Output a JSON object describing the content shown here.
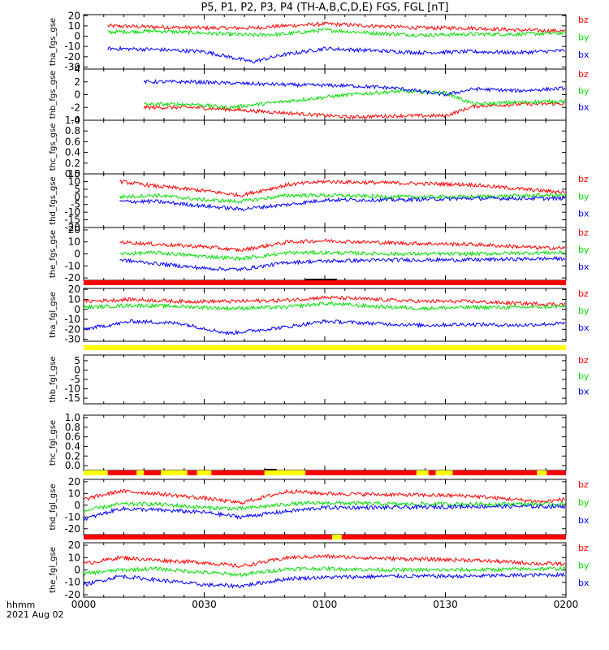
{
  "title": "P5, P1, P2, P3, P4 (TH-A,B,C,D,E) FGS, FGL [nT]",
  "colors": {
    "bx": "#0000ff",
    "by": "#00dd00",
    "bz": "#ff0000",
    "bar_red": "#ff0000",
    "bar_yellow": "#ffff00",
    "bar_black": "#000000"
  },
  "footer": {
    "hhmm_label": "hhmm",
    "date_label": "2021 Aug 02"
  },
  "x_axis": {
    "range_hours": [
      0,
      2
    ],
    "tick_labels": [
      "0000",
      "0030",
      "0100",
      "0130",
      "0200"
    ]
  },
  "chart_data": [
    {
      "id": "tha_fgs_gse",
      "type": "line",
      "ylabel": "tha_fgs_gse",
      "ylim": [
        -32,
        21
      ],
      "yticks": [
        20,
        10,
        0,
        -10,
        -20,
        -30
      ],
      "legend": [
        "bz",
        "by",
        "bx"
      ],
      "has_data": true,
      "data_start_hour": 0.1,
      "series": [
        {
          "name": "bz",
          "x": [
            0.1,
            0.3,
            0.5,
            0.7,
            0.83,
            1.0,
            1.2,
            1.4,
            1.6,
            1.8,
            2.0
          ],
          "values": [
            10,
            9,
            8,
            8,
            10,
            12,
            10,
            8,
            8,
            6,
            5
          ]
        },
        {
          "name": "by",
          "x": [
            0.1,
            0.3,
            0.5,
            0.7,
            0.83,
            1.0,
            1.2,
            1.4,
            1.6,
            1.8,
            2.0
          ],
          "values": [
            4,
            5,
            3,
            1,
            2,
            6,
            3,
            1,
            2,
            2,
            3
          ]
        },
        {
          "name": "bx",
          "x": [
            0.1,
            0.3,
            0.5,
            0.7,
            0.83,
            1.0,
            1.2,
            1.4,
            1.6,
            1.8,
            2.0
          ],
          "values": [
            -12,
            -13,
            -15,
            -25,
            -18,
            -12,
            -14,
            -16,
            -15,
            -16,
            -14
          ]
        }
      ]
    },
    {
      "id": "thb_fgs_gse",
      "type": "line",
      "ylabel": "thb_fgs_gse",
      "ylim": [
        -4,
        4
      ],
      "yticks": [
        4,
        2,
        0,
        -2,
        -4
      ],
      "legend": [
        "bz",
        "by",
        "bx"
      ],
      "has_data": true,
      "data_start_hour": 0.25,
      "series": [
        {
          "name": "bz",
          "x": [
            0.25,
            0.45,
            0.6,
            0.9,
            1.1,
            1.3,
            1.5,
            1.62,
            1.8,
            2.0
          ],
          "values": [
            -2,
            -2,
            -2.3,
            -3,
            -3.5,
            -3.3,
            -3.3,
            -1.8,
            -1.5,
            -1.4
          ]
        },
        {
          "name": "by",
          "x": [
            0.25,
            0.45,
            0.6,
            0.9,
            1.1,
            1.3,
            1.5,
            1.62,
            1.8,
            2.0
          ],
          "values": [
            -1.5,
            -1.5,
            -2.0,
            -0.8,
            0.0,
            0.5,
            0.3,
            -1.5,
            -1.2,
            -1.0
          ]
        },
        {
          "name": "bx",
          "x": [
            0.25,
            0.45,
            0.6,
            0.9,
            1.1,
            1.3,
            1.5,
            1.62,
            1.8,
            2.0
          ],
          "values": [
            2,
            2,
            1.8,
            1.5,
            1.4,
            1.0,
            0.0,
            0.9,
            0.6,
            1.0
          ]
        }
      ]
    },
    {
      "id": "thc_fgs_gse",
      "type": "line",
      "ylabel": "thc_fgs_gse",
      "ylim": [
        0,
        1
      ],
      "yticks": [
        1.0,
        0.8,
        0.6,
        0.4,
        0.2,
        0.0
      ],
      "yticks_dense": true,
      "legend": [],
      "has_data": false,
      "series": []
    },
    {
      "id": "thd_fgs_gse",
      "type": "line",
      "ylabel": "thd_fgs_gse",
      "ylim": [
        -20,
        15
      ],
      "yticks": [
        15,
        10,
        5,
        0,
        -5,
        -10,
        -15,
        -20
      ],
      "legend": [
        "bz",
        "by",
        "bx"
      ],
      "has_data": true,
      "data_start_hour": 0.15,
      "series": [
        {
          "name": "bz",
          "x": [
            0.15,
            0.3,
            0.5,
            0.65,
            0.85,
            1.0,
            1.3,
            1.6,
            1.9,
            2.0
          ],
          "values": [
            10,
            7,
            4,
            1,
            8,
            10,
            9,
            8,
            4,
            3
          ]
        },
        {
          "name": "by",
          "x": [
            0.15,
            0.3,
            0.5,
            0.65,
            0.85,
            1.0,
            1.3,
            1.6,
            1.9,
            2.0
          ],
          "values": [
            0,
            1,
            -2,
            -3,
            1,
            1,
            0,
            0,
            1,
            1
          ]
        },
        {
          "name": "bx",
          "x": [
            0.15,
            0.3,
            0.5,
            0.65,
            0.85,
            1.0,
            1.3,
            1.6,
            1.9,
            2.0
          ],
          "values": [
            -3,
            -3,
            -6,
            -8,
            -5,
            -2,
            -2,
            -1,
            -1,
            -1
          ]
        }
      ]
    },
    {
      "id": "the_fgs_gse",
      "type": "line",
      "ylabel": "the_fgs_gse",
      "ylim": [
        -22,
        22
      ],
      "yticks": [
        20,
        10,
        0,
        -10,
        -20
      ],
      "legend": [
        "bz",
        "by",
        "bx"
      ],
      "has_data": true,
      "data_start_hour": 0.15,
      "series": [
        {
          "name": "bz",
          "x": [
            0.15,
            0.3,
            0.5,
            0.65,
            0.85,
            1.0,
            1.3,
            1.6,
            1.9,
            2.0
          ],
          "values": [
            10,
            8,
            6,
            3,
            10,
            11,
            9,
            8,
            5,
            5
          ]
        },
        {
          "name": "by",
          "x": [
            0.15,
            0.3,
            0.5,
            0.65,
            0.85,
            1.0,
            1.3,
            1.6,
            1.9,
            2.0
          ],
          "values": [
            0,
            1,
            -2,
            -4,
            1,
            1,
            0,
            0,
            1,
            1
          ]
        },
        {
          "name": "bx",
          "x": [
            0.15,
            0.3,
            0.5,
            0.65,
            0.85,
            1.0,
            1.3,
            1.6,
            1.9,
            2.0
          ],
          "values": [
            -5,
            -8,
            -12,
            -13,
            -7,
            -6,
            -5,
            -5,
            -4,
            -4
          ]
        }
      ]
    },
    {
      "id": "tha_fgl_gse",
      "type": "line",
      "ylabel": "tha_fgl_gse",
      "ylim": [
        -32,
        21
      ],
      "yticks": [
        20,
        10,
        0,
        -10,
        -20,
        -30
      ],
      "legend": [
        "bz",
        "by",
        "bx"
      ],
      "has_data": true,
      "data_start_hour": 0.0,
      "series": [
        {
          "name": "bz",
          "x": [
            0.0,
            0.2,
            0.4,
            0.6,
            0.83,
            1.0,
            1.2,
            1.4,
            1.6,
            1.8,
            2.0
          ],
          "values": [
            8,
            10,
            8,
            8,
            9,
            12,
            10,
            8,
            8,
            6,
            5
          ]
        },
        {
          "name": "by",
          "x": [
            0.0,
            0.2,
            0.4,
            0.6,
            0.83,
            1.0,
            1.2,
            1.4,
            1.6,
            1.8,
            2.0
          ],
          "values": [
            2,
            4,
            3,
            1,
            2,
            6,
            3,
            1,
            2,
            2,
            3
          ]
        },
        {
          "name": "bx",
          "x": [
            0.0,
            0.2,
            0.4,
            0.6,
            0.83,
            1.0,
            1.2,
            1.4,
            1.6,
            1.8,
            2.0
          ],
          "values": [
            -20,
            -12,
            -14,
            -24,
            -18,
            -12,
            -14,
            -16,
            -15,
            -16,
            -14
          ]
        }
      ]
    },
    {
      "id": "thb_fgl_gse",
      "type": "line",
      "ylabel": "thb_fgl_gse",
      "ylim": [
        -18,
        8
      ],
      "yticks": [
        5,
        0,
        -5,
        -10,
        -15
      ],
      "legend": [
        "bz",
        "by",
        "bx"
      ],
      "has_data": false,
      "series": []
    },
    {
      "id": "thc_fgl_gse",
      "type": "line",
      "ylabel": "thc_fgl_gse",
      "ylim": [
        -0.1,
        1.05
      ],
      "yticks": [
        1.0,
        0.8,
        0.6,
        0.4,
        0.2,
        0.0
      ],
      "yticks_dense": true,
      "legend": [],
      "has_data": false,
      "series": []
    },
    {
      "id": "thd_fgl_gse",
      "type": "line",
      "ylabel": "thd_fgl_gse",
      "ylim": [
        -25,
        22
      ],
      "yticks": [
        20,
        10,
        0,
        -10,
        -20
      ],
      "legend": [
        "bz",
        "by",
        "bx"
      ],
      "has_data": true,
      "data_start_hour": 0.0,
      "series": [
        {
          "name": "bz",
          "x": [
            0.0,
            0.15,
            0.3,
            0.5,
            0.65,
            0.85,
            1.0,
            1.3,
            1.6,
            1.9,
            2.0
          ],
          "values": [
            5,
            12,
            10,
            6,
            2,
            12,
            10,
            9,
            8,
            3,
            5
          ]
        },
        {
          "name": "by",
          "x": [
            0.0,
            0.15,
            0.3,
            0.5,
            0.65,
            0.85,
            1.0,
            1.3,
            1.6,
            1.9,
            2.0
          ],
          "values": [
            -5,
            1,
            1,
            -2,
            -3,
            1,
            2,
            1,
            1,
            1,
            1
          ]
        },
        {
          "name": "bx",
          "x": [
            0.0,
            0.15,
            0.3,
            0.5,
            0.65,
            0.85,
            1.0,
            1.3,
            1.6,
            1.9,
            2.0
          ],
          "values": [
            -12,
            -3,
            -4,
            -6,
            -10,
            -5,
            -2,
            -2,
            -1,
            -1,
            -1
          ]
        }
      ]
    },
    {
      "id": "the_fgl_gse",
      "type": "line",
      "ylabel": "the_fgl_gse",
      "ylim": [
        -22,
        22
      ],
      "yticks": [
        20,
        10,
        0,
        -10,
        -20
      ],
      "legend": [
        "bz",
        "by",
        "bx"
      ],
      "has_data": true,
      "data_start_hour": 0.0,
      "series": [
        {
          "name": "bz",
          "x": [
            0.0,
            0.15,
            0.3,
            0.5,
            0.65,
            0.85,
            1.0,
            1.3,
            1.6,
            1.9,
            2.0
          ],
          "values": [
            5,
            10,
            8,
            6,
            3,
            10,
            11,
            9,
            8,
            5,
            5
          ]
        },
        {
          "name": "by",
          "x": [
            0.0,
            0.15,
            0.3,
            0.5,
            0.65,
            0.85,
            1.0,
            1.3,
            1.6,
            1.9,
            2.0
          ],
          "values": [
            -3,
            0,
            1,
            -2,
            -4,
            1,
            1,
            0,
            0,
            1,
            1
          ]
        },
        {
          "name": "bx",
          "x": [
            0.0,
            0.15,
            0.3,
            0.5,
            0.65,
            0.85,
            1.0,
            1.3,
            1.6,
            1.9,
            2.0
          ],
          "values": [
            -12,
            -5,
            -8,
            -12,
            -13,
            -7,
            -6,
            -5,
            -5,
            -4,
            -4
          ]
        }
      ]
    }
  ],
  "mode_bars": [
    {
      "after_panel": "the_fgs_gse",
      "segments": [
        {
          "from": 0,
          "to": 2,
          "color": "red"
        }
      ],
      "black_marks": [
        [
          0.92,
          1.05
        ]
      ]
    },
    {
      "after_panel": "tha_fgl_gse",
      "segments": [
        {
          "from": 0,
          "to": 2,
          "color": "yellow"
        }
      ],
      "black_marks": []
    },
    {
      "after_panel": "thc_fgl_gse",
      "segments": [
        {
          "from": 0,
          "to": 0.1,
          "color": "yellow"
        },
        {
          "from": 0.1,
          "to": 0.22,
          "color": "red"
        },
        {
          "from": 0.22,
          "to": 0.25,
          "color": "yellow"
        },
        {
          "from": 0.25,
          "to": 0.32,
          "color": "red"
        },
        {
          "from": 0.32,
          "to": 0.43,
          "color": "yellow"
        },
        {
          "from": 0.43,
          "to": 0.47,
          "color": "red"
        },
        {
          "from": 0.47,
          "to": 0.53,
          "color": "yellow"
        },
        {
          "from": 0.53,
          "to": 0.75,
          "color": "red"
        },
        {
          "from": 0.75,
          "to": 0.92,
          "color": "yellow"
        },
        {
          "from": 0.92,
          "to": 1.38,
          "color": "red"
        },
        {
          "from": 1.38,
          "to": 1.43,
          "color": "yellow"
        },
        {
          "from": 1.43,
          "to": 1.46,
          "color": "red"
        },
        {
          "from": 1.46,
          "to": 1.53,
          "color": "yellow"
        },
        {
          "from": 1.53,
          "to": 1.88,
          "color": "red"
        },
        {
          "from": 1.88,
          "to": 1.92,
          "color": "yellow"
        },
        {
          "from": 1.92,
          "to": 2.0,
          "color": "red"
        }
      ],
      "black_marks": [
        [
          0.75,
          0.8
        ]
      ]
    },
    {
      "after_panel": "thd_fgl_gse",
      "segments": [
        {
          "from": 0,
          "to": 1.03,
          "color": "red"
        },
        {
          "from": 1.03,
          "to": 1.07,
          "color": "yellow"
        },
        {
          "from": 1.07,
          "to": 2.0,
          "color": "red"
        }
      ],
      "black_marks": []
    }
  ]
}
